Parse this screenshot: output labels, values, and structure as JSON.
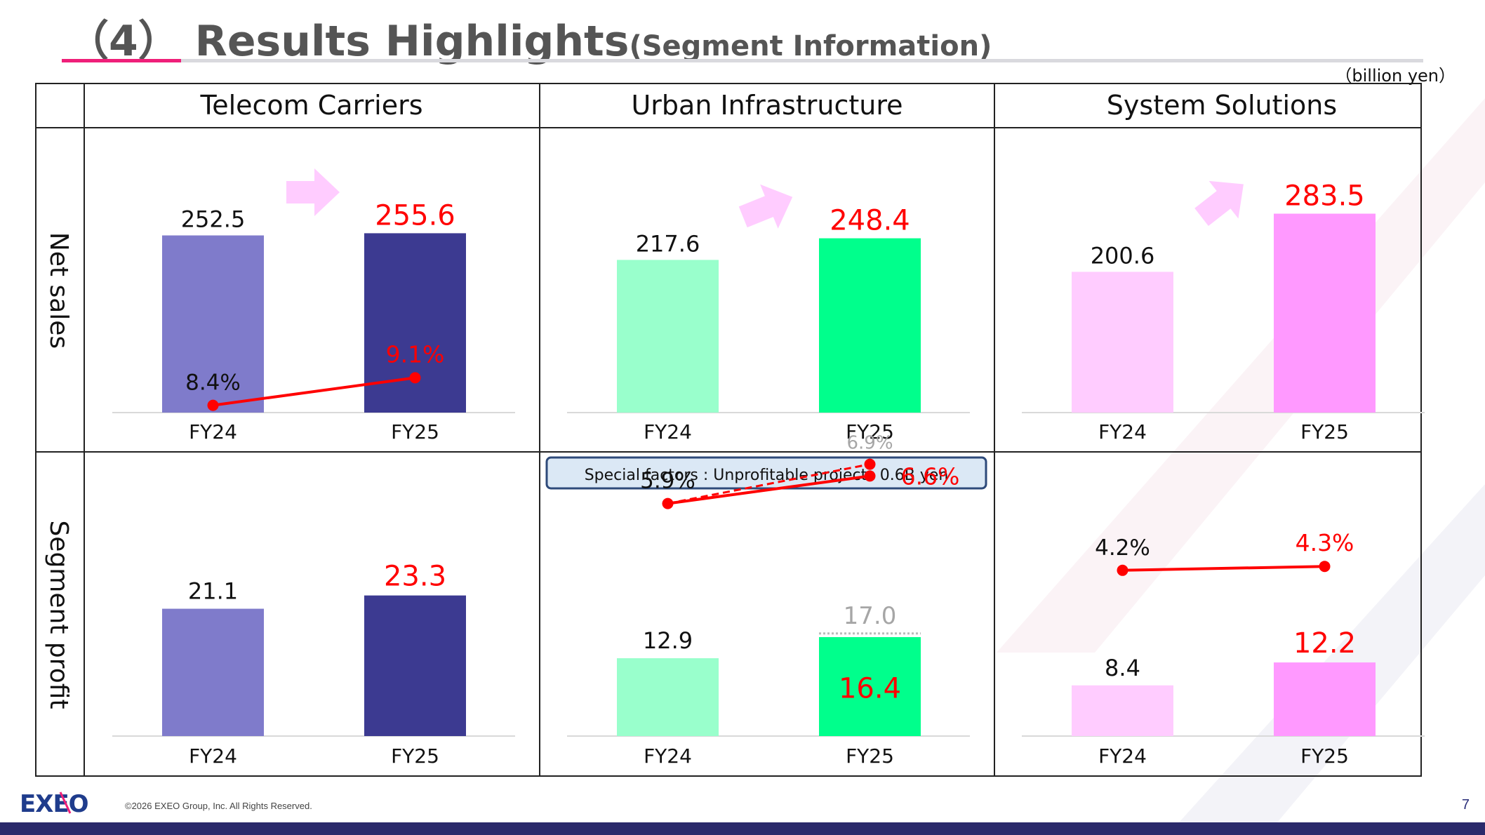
{
  "header": {
    "title_prefix": "（4） Results Highlights",
    "title_suffix": "(Segment Information)",
    "unit": "（billion yen）"
  },
  "row_labels": [
    "Net sales",
    "Segment profit"
  ],
  "segments": [
    {
      "name": "Telecom Carriers"
    },
    {
      "name": "Urban Infrastructure"
    },
    {
      "name": "System Solutions"
    }
  ],
  "special_factors": "Special factors : Unprofitable projects 0.6B yen",
  "colors": {
    "telecom_fy24": "#7f7bcb",
    "telecom_fy25": "#3c3a91",
    "urban_fy24": "#99ffcc",
    "urban_fy25": "#00ff8c",
    "system_fy24": "#ffccff",
    "system_fy25": "#ff99ff",
    "highlight_red": "#ff0000",
    "adjusted_gray": "#a6a6a6",
    "arrow_pink": "#ffccff"
  },
  "chart_data": [
    {
      "type": "bar",
      "panel": "Net sales",
      "segment": "Telecom Carriers",
      "categories": [
        "FY24",
        "FY25"
      ],
      "values": [
        252.5,
        255.6
      ],
      "labels": [
        "252.5",
        "255.6"
      ]
    },
    {
      "type": "bar",
      "panel": "Net sales",
      "segment": "Urban Infrastructure",
      "categories": [
        "FY24",
        "FY25"
      ],
      "values": [
        217.6,
        248.4
      ],
      "labels": [
        "217.6",
        "248.4"
      ]
    },
    {
      "type": "bar",
      "panel": "Net sales",
      "segment": "System Solutions",
      "categories": [
        "FY24",
        "FY25"
      ],
      "values": [
        200.6,
        283.5
      ],
      "labels": [
        "200.6",
        "283.5"
      ]
    },
    {
      "type": "bar",
      "panel": "Segment profit",
      "segment": "Telecom Carriers",
      "categories": [
        "FY24",
        "FY25"
      ],
      "values": [
        21.1,
        23.3
      ],
      "labels": [
        "21.1",
        "23.3"
      ],
      "margin": [
        8.4,
        9.1
      ],
      "margin_labels": [
        "8.4%",
        "9.1%"
      ]
    },
    {
      "type": "bar",
      "panel": "Segment profit",
      "segment": "Urban Infrastructure",
      "categories": [
        "FY24",
        "FY25"
      ],
      "values": [
        12.9,
        16.4
      ],
      "labels": [
        "12.9",
        "16.4"
      ],
      "margin": [
        5.9,
        6.6
      ],
      "margin_labels": [
        "5.9%",
        "6.6%"
      ],
      "adjusted_value": 17.0,
      "adjusted_label": "17.0",
      "adjusted_margin": 6.9,
      "adjusted_margin_label": "6.9%"
    },
    {
      "type": "bar",
      "panel": "Segment profit",
      "segment": "System Solutions",
      "categories": [
        "FY24",
        "FY25"
      ],
      "values": [
        8.4,
        12.2
      ],
      "labels": [
        "8.4",
        "12.2"
      ],
      "margin": [
        4.2,
        4.3
      ],
      "margin_labels": [
        "4.2%",
        "4.3%"
      ]
    }
  ],
  "footer": {
    "logo_text": "EXEO",
    "copyright": "©2026 EXEO Group, Inc. All Rights Reserved.",
    "page_number": "7"
  }
}
